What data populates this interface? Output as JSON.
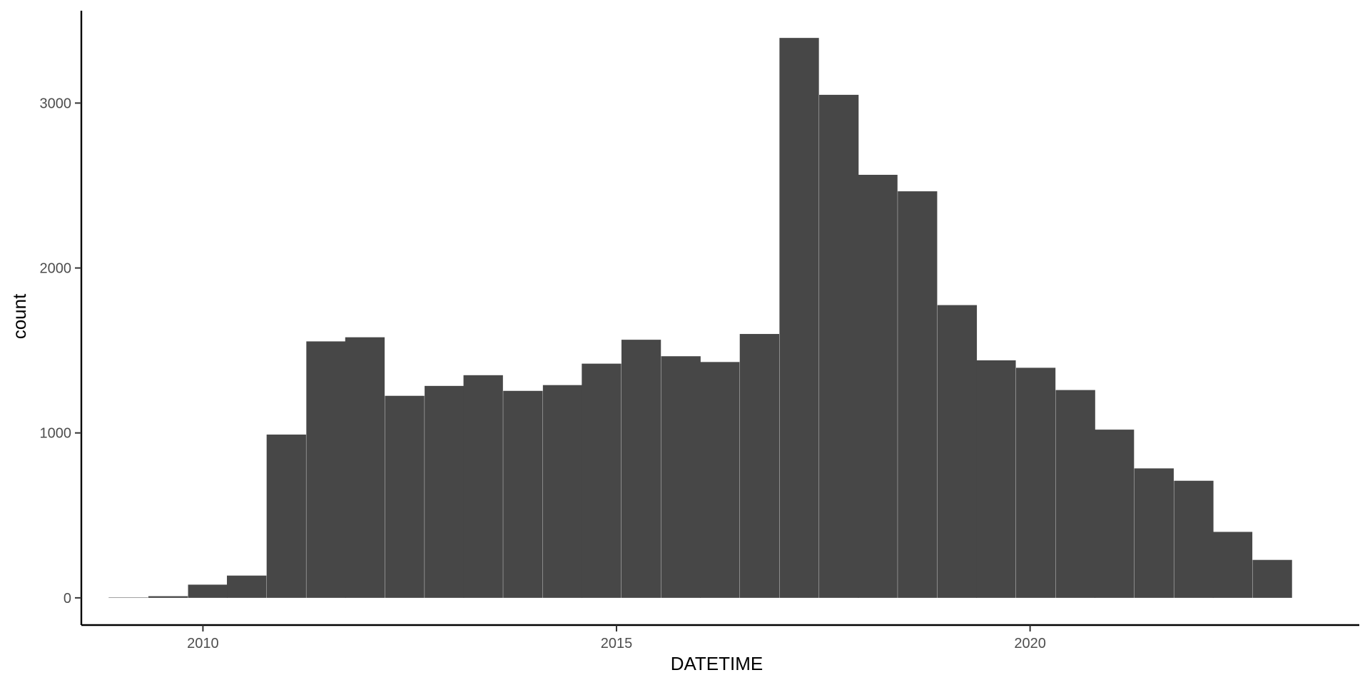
{
  "chart_data": {
    "type": "bar",
    "histogram": true,
    "xlabel": "DATETIME",
    "ylabel": "count",
    "grid": false,
    "xlim": [
      2008.53,
      2023.98
    ],
    "ylim": [
      -165,
      3560
    ],
    "x_ticks": [
      2010,
      2015,
      2020
    ],
    "x_tick_labels": [
      "2010",
      "2015",
      "2020"
    ],
    "y_ticks": [
      0,
      1000,
      2000,
      3000
    ],
    "y_tick_labels": [
      "0",
      "1000",
      "2000",
      "3000"
    ],
    "bin_width": 0.4768,
    "bin_starts": [
      2008.86,
      2009.34,
      2009.82,
      2010.29,
      2010.77,
      2011.25,
      2011.72,
      2012.2,
      2012.68,
      2013.15,
      2013.63,
      2014.11,
      2014.58,
      2015.06,
      2015.54,
      2016.01,
      2016.49,
      2016.97,
      2017.45,
      2017.92,
      2018.4,
      2018.88,
      2019.35,
      2019.83,
      2020.31,
      2020.78,
      2021.26,
      2021.74,
      2022.21,
      2022.69
    ],
    "values": [
      2,
      10,
      80,
      135,
      990,
      1555,
      1580,
      1225,
      1285,
      1350,
      1255,
      1290,
      1420,
      1565,
      1465,
      1430,
      1600,
      3395,
      3050,
      2565,
      2465,
      1775,
      1440,
      1395,
      1260,
      1020,
      785,
      710,
      400,
      230
    ]
  },
  "colors": {
    "bar_fill": "#474747",
    "axis": "#000000",
    "tick_label": "#4d4d4d",
    "background": "#ffffff"
  }
}
